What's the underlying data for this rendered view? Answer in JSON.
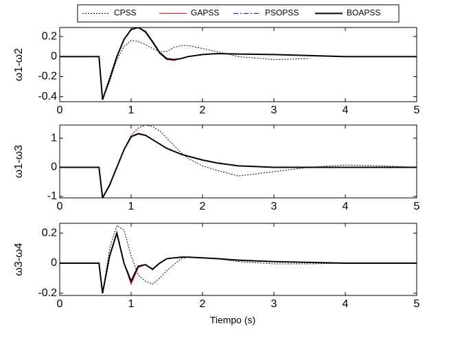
{
  "chart_data": [
    {
      "type": "line",
      "ylabel": "ω1-ω2",
      "x": [
        0,
        0.55,
        0.6,
        0.7,
        0.8,
        0.9,
        1.0,
        1.1,
        1.2,
        1.3,
        1.4,
        1.5,
        1.6,
        1.7,
        1.8,
        2.0,
        2.2,
        2.5,
        3.0,
        3.5,
        4.0,
        4.5,
        5.0
      ],
      "xlim": [
        0,
        5
      ],
      "xticks": [
        0,
        1,
        2,
        3,
        4,
        5
      ],
      "ylim": [
        -0.45,
        0.29
      ],
      "yticks": [
        -0.4,
        -0.2,
        0,
        0.2
      ],
      "series": [
        {
          "name": "CPSS",
          "color": "#000000",
          "linestyle": ":",
          "linewidth": 1,
          "values": [
            0,
            0,
            -0.43,
            -0.25,
            -0.03,
            0.1,
            0.16,
            0.15,
            0.12,
            0.08,
            0.05,
            0.05,
            0.09,
            0.11,
            0.11,
            0.08,
            0.05,
            0,
            -0.03,
            -0.02,
            null,
            null,
            null
          ]
        },
        {
          "name": "GAPSS",
          "color": "#ff0000",
          "linestyle": "-",
          "linewidth": 1,
          "values": [
            0,
            0,
            -0.43,
            -0.22,
            0,
            0.17,
            0.27,
            0.29,
            0.24,
            0.14,
            0.03,
            -0.03,
            -0.04,
            -0.02,
            0,
            0.02,
            0.03,
            0.025,
            0.02,
            0.01,
            0,
            0,
            0
          ]
        },
        {
          "name": "PSOPSS",
          "color": "#0000ff",
          "linestyle": "-.",
          "linewidth": 1,
          "values": [
            0,
            0,
            -0.43,
            -0.22,
            0,
            0.17,
            0.27,
            0.29,
            0.24,
            0.14,
            0.03,
            -0.03,
            -0.035,
            -0.02,
            0,
            0.02,
            0.03,
            0.025,
            0.02,
            0.01,
            0,
            0,
            0
          ]
        },
        {
          "name": "BOAPSS",
          "color": "#000000",
          "linestyle": "-",
          "linewidth": 2,
          "values": [
            0,
            0,
            -0.43,
            -0.22,
            0,
            0.17,
            0.27,
            0.29,
            0.25,
            0.15,
            0.04,
            -0.02,
            -0.03,
            -0.02,
            0,
            0.02,
            0.03,
            0.025,
            0.02,
            0.01,
            0,
            0,
            0
          ]
        }
      ]
    },
    {
      "type": "line",
      "ylabel": "ω1-ω3",
      "x": [
        0,
        0.55,
        0.6,
        0.7,
        0.8,
        0.9,
        1.0,
        1.1,
        1.2,
        1.3,
        1.4,
        1.5,
        1.6,
        1.7,
        1.8,
        2.0,
        2.2,
        2.5,
        3.0,
        3.5,
        4.0,
        4.5,
        5.0
      ],
      "xlim": [
        0,
        5
      ],
      "xticks": [
        0,
        1,
        2,
        3,
        4,
        5
      ],
      "ylim": [
        -1.05,
        1.45
      ],
      "yticks": [
        -1,
        0,
        1
      ],
      "series": [
        {
          "name": "CPSS",
          "color": "#000000",
          "linestyle": ":",
          "linewidth": 1,
          "values": [
            0,
            0,
            -1.05,
            -0.65,
            0,
            0.6,
            1.1,
            1.35,
            1.45,
            1.4,
            1.25,
            1.0,
            0.75,
            0.5,
            0.3,
            0.05,
            -0.1,
            -0.3,
            -0.15,
            0,
            0.08,
            0.05,
            0
          ]
        },
        {
          "name": "GAPSS",
          "color": "#ff0000",
          "linestyle": "-",
          "linewidth": 1,
          "values": [
            0,
            0,
            -1.05,
            -0.6,
            0,
            0.62,
            1.07,
            1.17,
            1.1,
            0.95,
            0.8,
            0.65,
            0.55,
            0.45,
            0.38,
            0.25,
            0.15,
            0.05,
            0,
            0,
            0,
            0,
            0
          ]
        },
        {
          "name": "PSOPSS",
          "color": "#0000ff",
          "linestyle": "-.",
          "linewidth": 1,
          "values": [
            0,
            0,
            -1.05,
            -0.6,
            0,
            0.61,
            1.06,
            1.16,
            1.1,
            0.95,
            0.8,
            0.65,
            0.55,
            0.45,
            0.38,
            0.25,
            0.15,
            0.05,
            0,
            0,
            0,
            0,
            0
          ]
        },
        {
          "name": "BOAPSS",
          "color": "#000000",
          "linestyle": "-",
          "linewidth": 2,
          "values": [
            0,
            0,
            -1.05,
            -0.6,
            0,
            0.6,
            1.05,
            1.15,
            1.1,
            0.95,
            0.8,
            0.65,
            0.55,
            0.45,
            0.38,
            0.25,
            0.15,
            0.05,
            0,
            0,
            0,
            0,
            0
          ]
        }
      ]
    },
    {
      "type": "line",
      "ylabel": "ω3-ω4",
      "xlabel": "Tiempo (s)",
      "x": [
        0,
        0.55,
        0.6,
        0.7,
        0.8,
        0.9,
        1.0,
        1.1,
        1.2,
        1.3,
        1.4,
        1.5,
        1.6,
        1.7,
        1.8,
        2.0,
        2.2,
        2.5,
        3.0,
        3.5,
        4.0,
        4.5,
        5.0
      ],
      "xlim": [
        0,
        5
      ],
      "xticks": [
        0,
        1,
        2,
        3,
        4,
        5
      ],
      "ylim": [
        -0.215,
        0.265
      ],
      "yticks": [
        -0.2,
        0,
        0.2
      ],
      "series": [
        {
          "name": "CPSS",
          "color": "#000000",
          "linestyle": ":",
          "linewidth": 1,
          "values": [
            0,
            0,
            -0.2,
            0.1,
            0.25,
            0.22,
            0.05,
            -0.08,
            -0.12,
            -0.14,
            -0.1,
            -0.05,
            -0.01,
            0.03,
            0.04,
            0.035,
            0.03,
            0.01,
            -0.005,
            -0.005,
            0,
            null,
            null
          ]
        },
        {
          "name": "GAPSS",
          "color": "#ff0000",
          "linestyle": "-",
          "linewidth": 1,
          "values": [
            0,
            0,
            -0.2,
            0.05,
            0.2,
            0.0,
            -0.14,
            -0.03,
            -0.01,
            -0.045,
            0.0,
            0.03,
            0.035,
            0.04,
            0.04,
            0.035,
            0.03,
            0.02,
            0.01,
            0.005,
            0,
            0,
            0
          ]
        },
        {
          "name": "PSOPSS",
          "color": "#0000ff",
          "linestyle": "-.",
          "linewidth": 1,
          "values": [
            0,
            0,
            -0.2,
            0.05,
            0.2,
            0.0,
            -0.13,
            -0.02,
            -0.01,
            -0.04,
            0.0,
            0.03,
            0.035,
            0.04,
            0.04,
            0.035,
            0.03,
            0.02,
            0.01,
            0.005,
            0,
            0,
            0
          ]
        },
        {
          "name": "BOAPSS",
          "color": "#000000",
          "linestyle": "-",
          "linewidth": 2,
          "values": [
            0,
            0,
            -0.2,
            0.05,
            0.2,
            0.0,
            -0.12,
            -0.02,
            -0.01,
            -0.04,
            0.0,
            0.03,
            0.035,
            0.04,
            0.04,
            0.035,
            0.03,
            0.02,
            0.01,
            0.005,
            0,
            0,
            0
          ]
        }
      ]
    }
  ]
}
